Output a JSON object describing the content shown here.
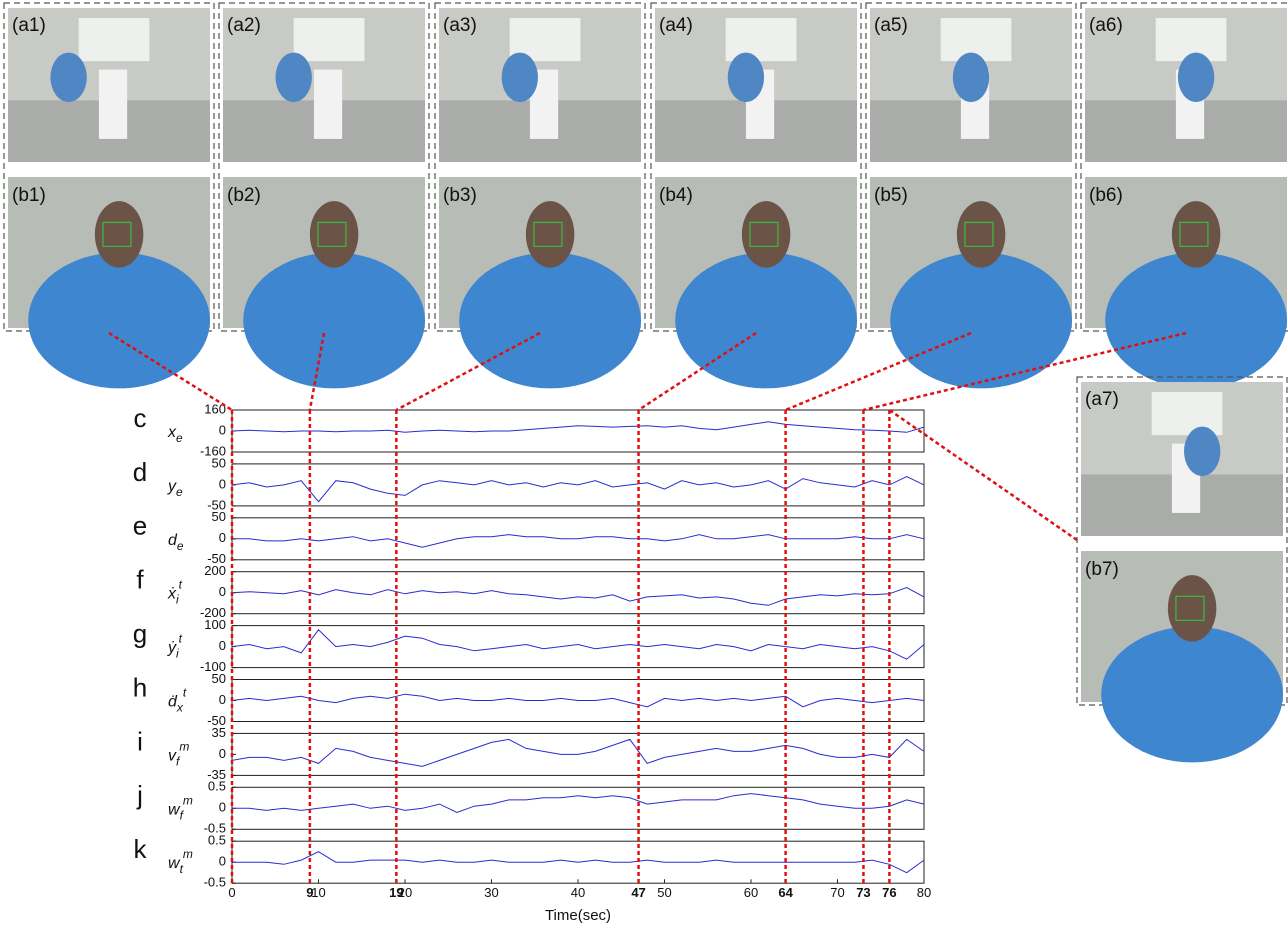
{
  "panels": [
    {
      "a": "(a1)",
      "b": "(b1)"
    },
    {
      "a": "(a2)",
      "b": "(b2)"
    },
    {
      "a": "(a3)",
      "b": "(b3)"
    },
    {
      "a": "(a4)",
      "b": "(b4)"
    },
    {
      "a": "(a5)",
      "b": "(b5)"
    },
    {
      "a": "(a6)",
      "b": "(b6)"
    },
    {
      "a": "(a7)",
      "b": "(b7)"
    }
  ],
  "chart_data": [
    {
      "type": "line",
      "panel_label": "c",
      "ylabel": {
        "base": "x",
        "sub": "e"
      },
      "color": "#2b2bd0",
      "xlim": [
        0,
        80
      ],
      "ylim": [
        -160,
        160
      ],
      "yticks": [
        -160,
        0,
        160
      ],
      "x": [
        0,
        2,
        4,
        6,
        8,
        10,
        12,
        14,
        16,
        18,
        20,
        22,
        24,
        26,
        28,
        30,
        32,
        34,
        36,
        38,
        40,
        42,
        44,
        46,
        48,
        50,
        52,
        54,
        56,
        58,
        60,
        62,
        64,
        66,
        68,
        70,
        72,
        74,
        76,
        78,
        80
      ],
      "values": [
        0,
        5,
        0,
        -5,
        0,
        0,
        -5,
        0,
        0,
        5,
        -10,
        0,
        5,
        0,
        -5,
        0,
        0,
        10,
        20,
        30,
        40,
        35,
        30,
        35,
        40,
        30,
        40,
        20,
        10,
        30,
        50,
        70,
        50,
        40,
        30,
        20,
        10,
        5,
        0,
        -10,
        30
      ]
    },
    {
      "type": "line",
      "panel_label": "d",
      "ylabel": {
        "base": "y",
        "sub": "e"
      },
      "color": "#2b2bd0",
      "xlim": [
        0,
        80
      ],
      "ylim": [
        -50,
        50
      ],
      "yticks": [
        -50,
        0,
        50
      ],
      "x": [
        0,
        2,
        4,
        6,
        8,
        10,
        12,
        14,
        16,
        18,
        20,
        22,
        24,
        26,
        28,
        30,
        32,
        34,
        36,
        38,
        40,
        42,
        44,
        46,
        48,
        50,
        52,
        54,
        56,
        58,
        60,
        62,
        64,
        66,
        68,
        70,
        72,
        74,
        76,
        78,
        80
      ],
      "values": [
        0,
        5,
        -5,
        0,
        10,
        -40,
        10,
        5,
        -10,
        -20,
        -25,
        0,
        10,
        5,
        0,
        10,
        0,
        5,
        -5,
        5,
        0,
        10,
        -5,
        0,
        5,
        -10,
        10,
        0,
        5,
        -5,
        0,
        10,
        -10,
        15,
        5,
        0,
        -5,
        10,
        0,
        20,
        0
      ]
    },
    {
      "type": "line",
      "panel_label": "e",
      "ylabel": {
        "base": "d",
        "sub": "e"
      },
      "color": "#2b2bd0",
      "xlim": [
        0,
        80
      ],
      "ylim": [
        -50,
        50
      ],
      "yticks": [
        -50,
        0,
        50
      ],
      "x": [
        0,
        2,
        4,
        6,
        8,
        10,
        12,
        14,
        16,
        18,
        20,
        22,
        24,
        26,
        28,
        30,
        32,
        34,
        36,
        38,
        40,
        42,
        44,
        46,
        48,
        50,
        52,
        54,
        56,
        58,
        60,
        62,
        64,
        66,
        68,
        70,
        72,
        74,
        76,
        78,
        80
      ],
      "values": [
        0,
        0,
        -5,
        -5,
        0,
        -5,
        0,
        5,
        -5,
        0,
        -10,
        -20,
        -10,
        0,
        5,
        5,
        10,
        5,
        5,
        0,
        0,
        5,
        5,
        0,
        0,
        -5,
        0,
        10,
        0,
        0,
        5,
        10,
        0,
        0,
        0,
        0,
        5,
        0,
        0,
        10,
        0
      ]
    },
    {
      "type": "line",
      "panel_label": "f",
      "ylabel": {
        "base": "ẋ",
        "sub": "i",
        "sup": "t"
      },
      "color": "#2b2bd0",
      "xlim": [
        0,
        80
      ],
      "ylim": [
        -200,
        200
      ],
      "yticks": [
        -200,
        0,
        200
      ],
      "x": [
        0,
        2,
        4,
        6,
        8,
        10,
        12,
        14,
        16,
        18,
        20,
        22,
        24,
        26,
        28,
        30,
        32,
        34,
        36,
        38,
        40,
        42,
        44,
        46,
        48,
        50,
        52,
        54,
        56,
        58,
        60,
        62,
        64,
        66,
        68,
        70,
        72,
        74,
        76,
        78,
        80
      ],
      "values": [
        0,
        10,
        0,
        -10,
        20,
        -20,
        30,
        0,
        -20,
        30,
        -10,
        20,
        0,
        10,
        -10,
        20,
        -10,
        -20,
        -40,
        -60,
        -40,
        -50,
        -20,
        -80,
        -40,
        -30,
        -20,
        -50,
        -40,
        -60,
        -100,
        -120,
        -60,
        -40,
        -20,
        -30,
        -10,
        -20,
        -10,
        50,
        -40
      ]
    },
    {
      "type": "line",
      "panel_label": "g",
      "ylabel": {
        "base": "ẏ",
        "sub": "i",
        "sup": "t"
      },
      "color": "#2b2bd0",
      "xlim": [
        0,
        80
      ],
      "ylim": [
        -100,
        100
      ],
      "yticks": [
        -100,
        0,
        100
      ],
      "x": [
        0,
        2,
        4,
        6,
        8,
        10,
        12,
        14,
        16,
        18,
        20,
        22,
        24,
        26,
        28,
        30,
        32,
        34,
        36,
        38,
        40,
        42,
        44,
        46,
        48,
        50,
        52,
        54,
        56,
        58,
        60,
        62,
        64,
        66,
        68,
        70,
        72,
        74,
        76,
        78,
        80
      ],
      "values": [
        0,
        10,
        -10,
        0,
        -30,
        80,
        0,
        10,
        0,
        20,
        50,
        40,
        10,
        0,
        -20,
        -10,
        0,
        10,
        -10,
        0,
        10,
        -10,
        0,
        10,
        0,
        10,
        0,
        -10,
        10,
        0,
        -20,
        10,
        0,
        -10,
        10,
        0,
        -10,
        0,
        -20,
        -60,
        10
      ]
    },
    {
      "type": "line",
      "panel_label": "h",
      "ylabel": {
        "base": "ḋ",
        "sub": "x",
        "sup": "t"
      },
      "color": "#2b2bd0",
      "xlim": [
        0,
        80
      ],
      "ylim": [
        -50,
        50
      ],
      "yticks": [
        -50,
        0,
        50
      ],
      "x": [
        0,
        2,
        4,
        6,
        8,
        10,
        12,
        14,
        16,
        18,
        20,
        22,
        24,
        26,
        28,
        30,
        32,
        34,
        36,
        38,
        40,
        42,
        44,
        46,
        48,
        50,
        52,
        54,
        56,
        58,
        60,
        62,
        64,
        66,
        68,
        70,
        72,
        74,
        76,
        78,
        80
      ],
      "values": [
        0,
        5,
        0,
        5,
        10,
        0,
        -5,
        5,
        10,
        5,
        15,
        10,
        0,
        5,
        0,
        0,
        5,
        0,
        0,
        5,
        0,
        0,
        5,
        -5,
        -15,
        5,
        0,
        5,
        0,
        5,
        0,
        5,
        10,
        -15,
        0,
        5,
        0,
        -5,
        0,
        5,
        0
      ]
    },
    {
      "type": "line",
      "panel_label": "i",
      "ylabel": {
        "base": "v",
        "sub": "f",
        "sup": "m"
      },
      "color": "#2b2bd0",
      "xlim": [
        0,
        80
      ],
      "ylim": [
        -35,
        35
      ],
      "yticks": [
        -35,
        0,
        35
      ],
      "x": [
        0,
        2,
        4,
        6,
        8,
        10,
        12,
        14,
        16,
        18,
        20,
        22,
        24,
        26,
        28,
        30,
        32,
        34,
        36,
        38,
        40,
        42,
        44,
        46,
        48,
        50,
        52,
        54,
        56,
        58,
        60,
        62,
        64,
        66,
        68,
        70,
        72,
        74,
        76,
        78,
        80
      ],
      "values": [
        -10,
        -5,
        -5,
        -10,
        -5,
        -15,
        10,
        5,
        -5,
        -10,
        -15,
        -20,
        -10,
        0,
        10,
        20,
        25,
        10,
        5,
        0,
        0,
        5,
        15,
        25,
        -15,
        -5,
        0,
        5,
        10,
        5,
        5,
        10,
        15,
        10,
        0,
        -5,
        -5,
        0,
        -5,
        25,
        5
      ]
    },
    {
      "type": "line",
      "panel_label": "j",
      "ylabel": {
        "base": "w",
        "sub": "f",
        "sup": "m"
      },
      "color": "#2b2bd0",
      "xlim": [
        0,
        80
      ],
      "ylim": [
        -0.5,
        0.5
      ],
      "yticks": [
        -0.5,
        0,
        0.5
      ],
      "x": [
        0,
        2,
        4,
        6,
        8,
        10,
        12,
        14,
        16,
        18,
        20,
        22,
        24,
        26,
        28,
        30,
        32,
        34,
        36,
        38,
        40,
        42,
        44,
        46,
        48,
        50,
        52,
        54,
        56,
        58,
        60,
        62,
        64,
        66,
        68,
        70,
        72,
        74,
        76,
        78,
        80
      ],
      "values": [
        0,
        0,
        -0.05,
        0,
        -0.05,
        0,
        0.05,
        0.1,
        0,
        0.05,
        -0.05,
        0,
        0.1,
        -0.1,
        0.05,
        0.1,
        0.2,
        0.2,
        0.25,
        0.25,
        0.3,
        0.25,
        0.3,
        0.25,
        0.1,
        0.15,
        0.2,
        0.2,
        0.2,
        0.3,
        0.35,
        0.3,
        0.25,
        0.2,
        0.1,
        0.05,
        0,
        0,
        0.05,
        0.2,
        0.1
      ]
    },
    {
      "type": "line",
      "panel_label": "k",
      "ylabel": {
        "base": "w",
        "sub": "t",
        "sup": "m"
      },
      "color": "#2b2bd0",
      "xlim": [
        0,
        80
      ],
      "ylim": [
        -0.5,
        0.5
      ],
      "yticks": [
        -0.5,
        0,
        0.5
      ],
      "x": [
        0,
        2,
        4,
        6,
        8,
        10,
        12,
        14,
        16,
        18,
        20,
        22,
        24,
        26,
        28,
        30,
        32,
        34,
        36,
        38,
        40,
        42,
        44,
        46,
        48,
        50,
        52,
        54,
        56,
        58,
        60,
        62,
        64,
        66,
        68,
        70,
        72,
        74,
        76,
        78,
        80
      ],
      "values": [
        0,
        0,
        0,
        -0.05,
        0.05,
        0.25,
        0,
        0,
        0.05,
        0.05,
        0.05,
        0,
        0.05,
        0,
        0,
        0.05,
        0,
        0,
        0,
        0.05,
        0,
        0.05,
        0,
        0,
        0.05,
        0,
        0,
        0,
        0.05,
        0,
        0,
        0,
        0,
        0,
        0,
        0,
        0,
        0.05,
        -0.05,
        -0.25,
        0.05
      ],
      "xticks": [
        0,
        10,
        20,
        30,
        40,
        50,
        60,
        70,
        80
      ],
      "event_times": [
        9,
        19,
        47,
        64,
        73,
        76
      ],
      "xlabel": "Time(sec)"
    }
  ]
}
